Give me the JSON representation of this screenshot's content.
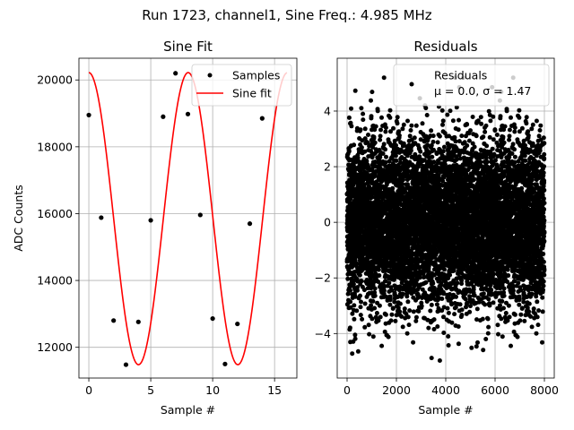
{
  "suptitle": "Run 1723, channel1, Sine Freq.: 4.985 MHz",
  "colors": {
    "samples": "#000000",
    "fit": "#ff0000",
    "residuals": "#000000",
    "grid": "#b0b0b0"
  },
  "chart_data": [
    {
      "type": "line",
      "title": "Sine Fit",
      "xlabel": "Sample #",
      "ylabel": "ADC Counts",
      "xlim": [
        -0.8,
        16.8
      ],
      "ylim": [
        11080,
        20650
      ],
      "xticks": [
        0,
        5,
        10,
        15
      ],
      "yticks": [
        12000,
        14000,
        16000,
        18000,
        20000
      ],
      "grid": true,
      "legend": {
        "placement": "top-right",
        "entries": [
          "Samples",
          "Sine fit"
        ]
      },
      "series": [
        {
          "name": "Samples",
          "style": "points",
          "x": [
            0,
            1,
            2,
            3,
            4,
            5,
            6,
            7,
            8,
            9,
            10,
            11,
            12,
            13,
            14
          ],
          "y": [
            18950,
            15880,
            12800,
            11480,
            12760,
            15800,
            18900,
            20200,
            18980,
            15960,
            12860,
            11500,
            12700,
            15700,
            18850
          ]
        },
        {
          "name": "Sine fit",
          "style": "line",
          "model": {
            "offset": 15850,
            "amplitude": 4370,
            "period": 8.022,
            "phase_deg": 0,
            "x_range": [
              0,
              16
            ]
          }
        }
      ]
    },
    {
      "type": "scatter",
      "title": "Residuals",
      "xlabel": "Sample #",
      "ylabel": "",
      "xlim": [
        -400,
        8400
      ],
      "ylim": [
        -5.6,
        5.9
      ],
      "xticks": [
        0,
        2000,
        4000,
        6000,
        8000
      ],
      "yticks": [
        -4,
        -2,
        0,
        2,
        4
      ],
      "grid": true,
      "legend": {
        "placement": "top-right",
        "entries": [
          "Residuals",
          "μ = 0.0, σ = 1.47"
        ]
      },
      "series": [
        {
          "name": "Residuals",
          "n_points": 8000,
          "x_range": [
            0,
            8000
          ],
          "mean": 0.0,
          "std": 1.47,
          "min": -5.2,
          "max": 5.2
        }
      ]
    }
  ]
}
